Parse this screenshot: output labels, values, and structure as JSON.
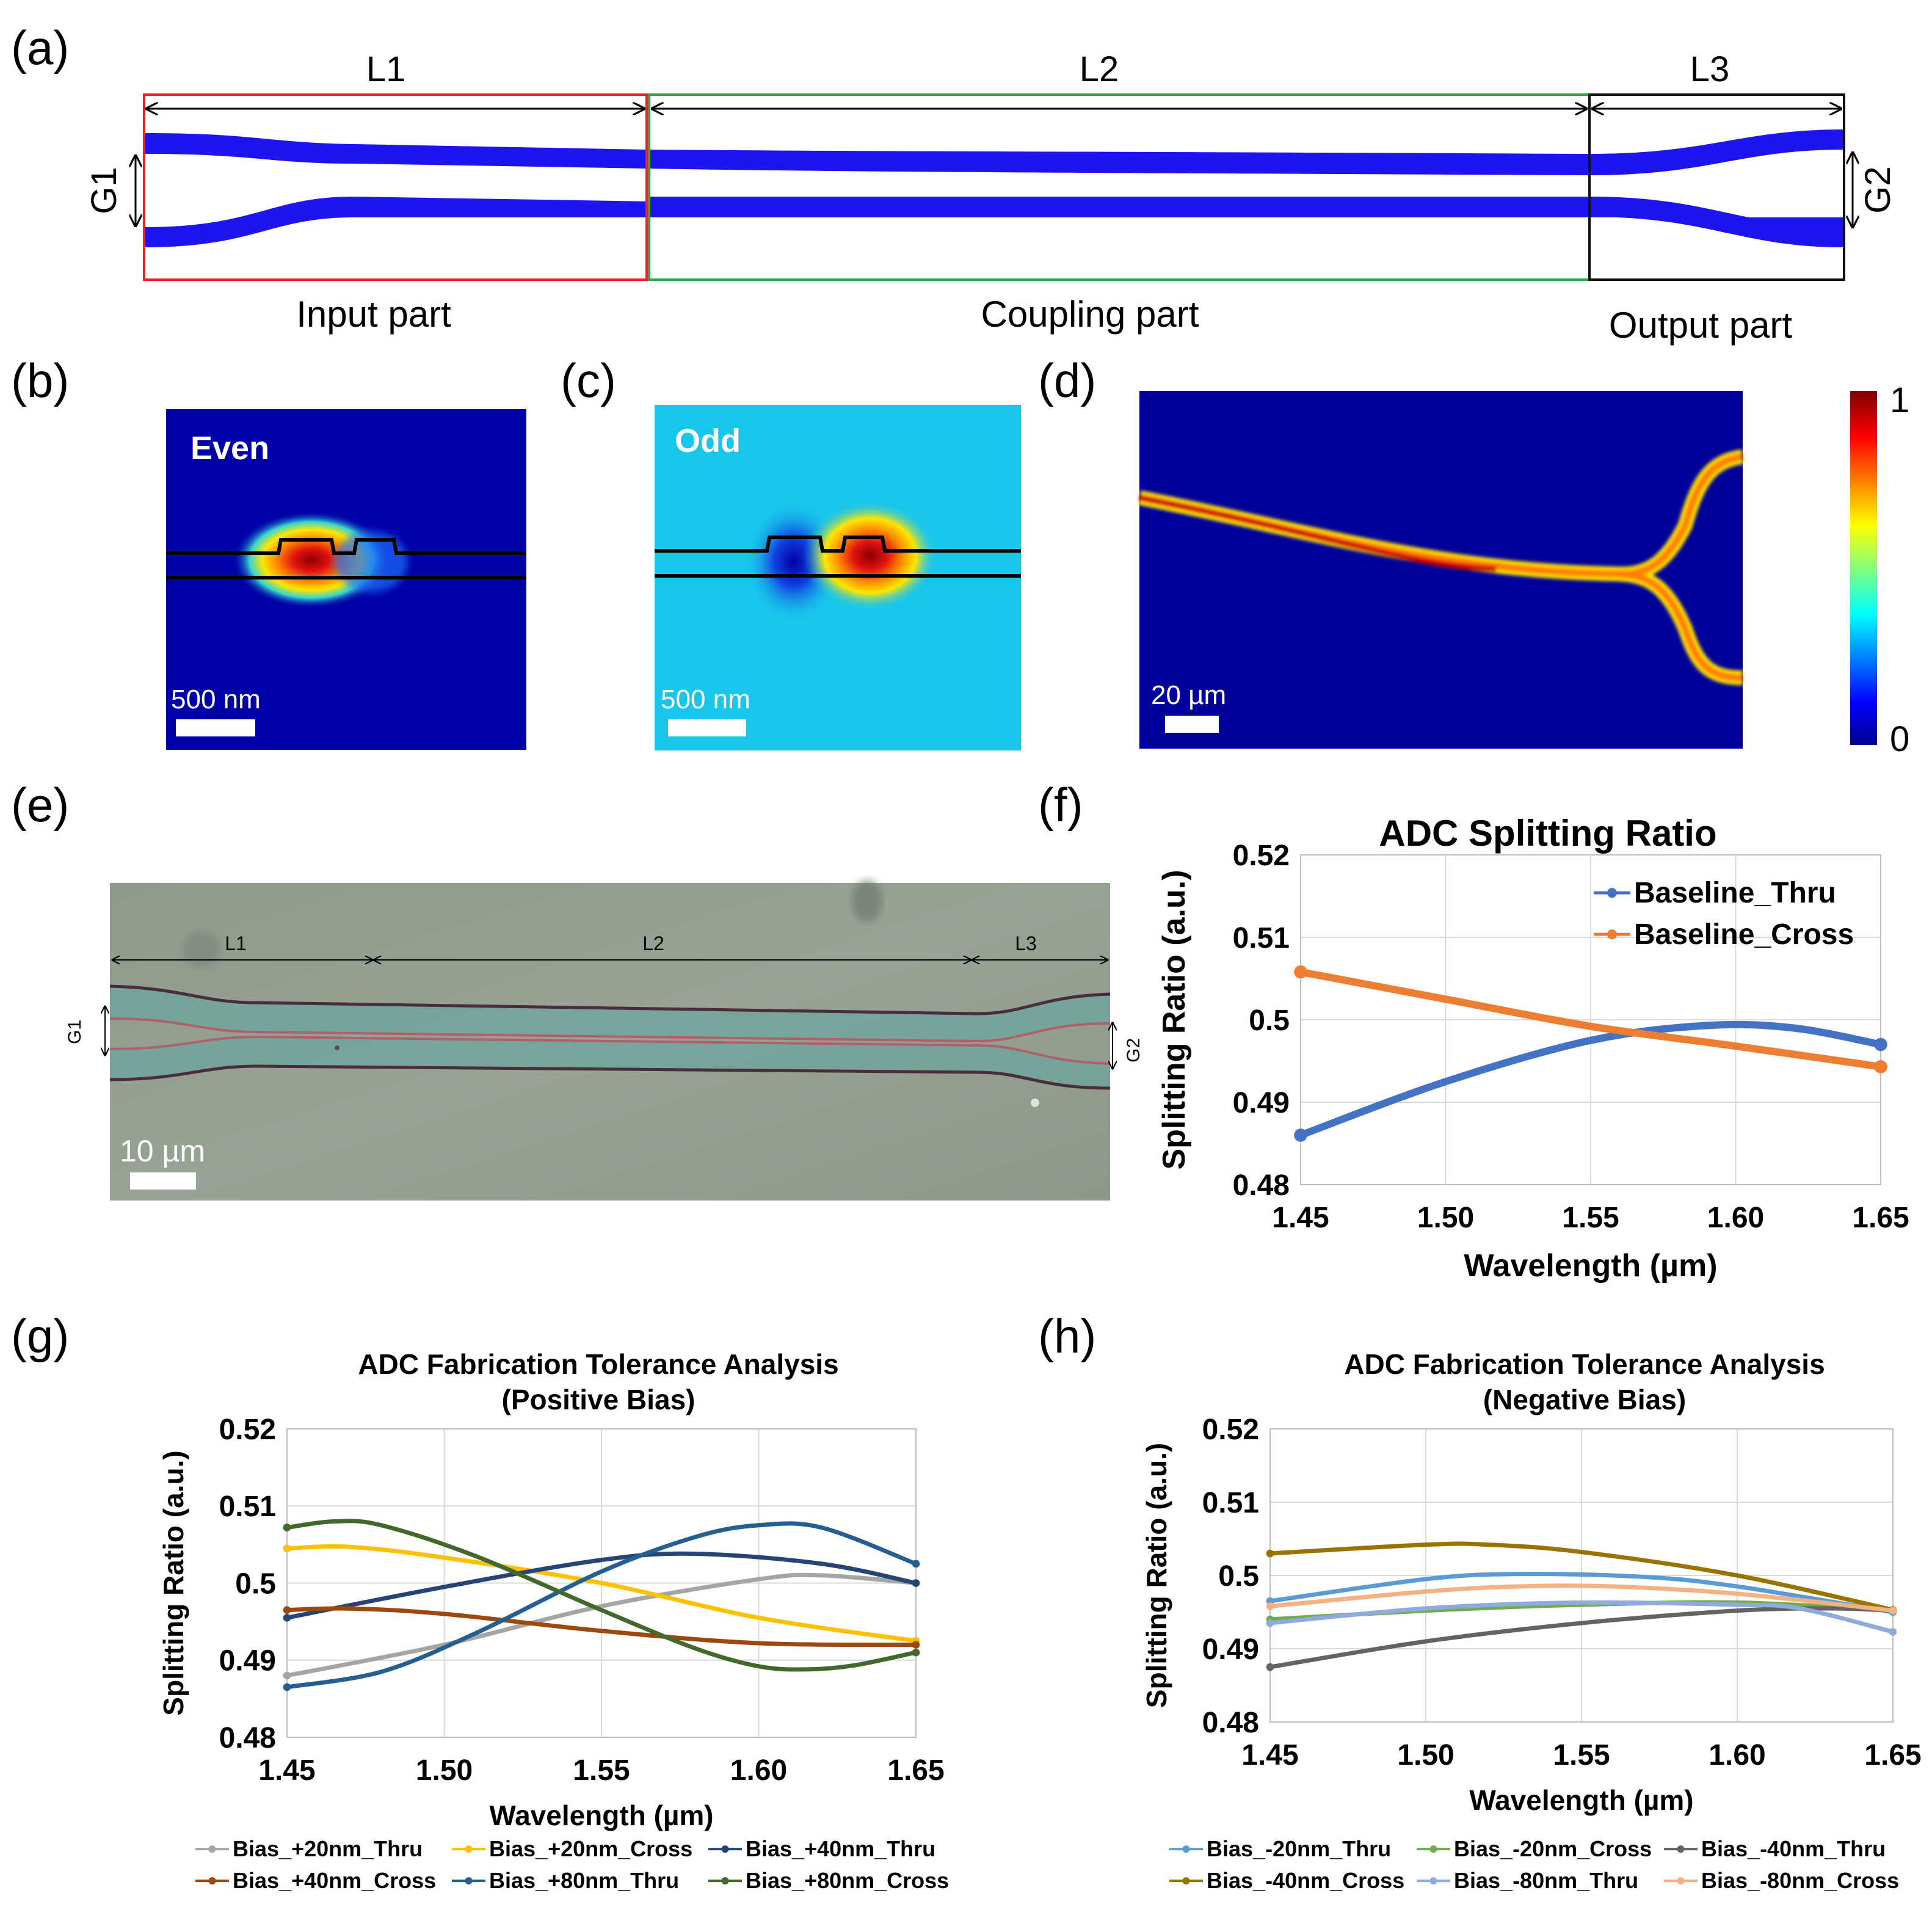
{
  "panel_labels": [
    "(a)",
    "(b)",
    "(c)",
    "(d)",
    "(e)",
    "(f)",
    "(g)",
    "(h)"
  ],
  "schematic": {
    "dims": [
      "L1",
      "L2",
      "L3"
    ],
    "gaps": [
      "G1",
      "G2"
    ],
    "parts": [
      "Input part",
      "Coupling part",
      "Output part"
    ],
    "colors": {
      "waveguide": "#1e14f0",
      "input_box": "#e8262a",
      "coupling_box": "#2aa844",
      "output_box": "#111111"
    }
  },
  "mode_b": {
    "label": "Even",
    "scale": "500 nm"
  },
  "mode_c": {
    "label": "Odd",
    "scale": "500 nm"
  },
  "field_d": {
    "scale": "20 µm",
    "colorbar_max": "1",
    "colorbar_min": "0"
  },
  "micrograph": {
    "dims": [
      "L1",
      "L2",
      "L3"
    ],
    "gaps": [
      "G1",
      "G2"
    ],
    "scale": "10 µm"
  },
  "chart_data": [
    {
      "id": "f",
      "type": "line",
      "title": "ADC Splitting Ratio",
      "xlabel": "Wavelength (µm)",
      "ylabel": "Splitting Ratio (a.u.)",
      "xlim": [
        1.45,
        1.65
      ],
      "ylim": [
        0.48,
        0.52
      ],
      "xticks": [
        "1.45",
        "1.50",
        "1.55",
        "1.60",
        "1.65"
      ],
      "yticks": [
        "0.48",
        "0.49",
        "0.5",
        "0.51",
        "0.52"
      ],
      "legend_position": "top-right",
      "series": [
        {
          "name": "Baseline_Thru",
          "color": "#4472c4",
          "x": [
            1.45,
            1.5,
            1.55,
            1.59,
            1.62,
            1.65
          ],
          "y": [
            0.486,
            0.4925,
            0.4975,
            0.4993,
            0.499,
            0.497
          ]
        },
        {
          "name": "Baseline_Cross",
          "color": "#ed7d31",
          "x": [
            1.45,
            1.5,
            1.55,
            1.6,
            1.65
          ],
          "y": [
            0.5058,
            0.5025,
            0.4992,
            0.4968,
            0.4943
          ]
        }
      ]
    },
    {
      "id": "g",
      "type": "line",
      "title": "ADC Fabrication Tolerance Analysis",
      "subtitle": "(Positive Bias)",
      "xlabel": "Wavelength (µm)",
      "ylabel": "Splitting Ratio (a.u.)",
      "xlim": [
        1.45,
        1.65
      ],
      "ylim": [
        0.48,
        0.52
      ],
      "xticks": [
        "1.45",
        "1.50",
        "1.55",
        "1.60",
        "1.65"
      ],
      "yticks": [
        "0.48",
        "0.49",
        "0.5",
        "0.51",
        "0.52"
      ],
      "legend_position": "bottom",
      "series": [
        {
          "name": "Bias_+20nm_Thru",
          "color": "#a5a5a5",
          "x": [
            1.45,
            1.5,
            1.55,
            1.6,
            1.62,
            1.65
          ],
          "y": [
            0.488,
            0.492,
            0.497,
            0.5005,
            0.501,
            0.5
          ]
        },
        {
          "name": "Bias_+20nm_Cross",
          "color": "#ffc000",
          "x": [
            1.45,
            1.47,
            1.5,
            1.55,
            1.6,
            1.65
          ],
          "y": [
            0.5045,
            0.5047,
            0.5033,
            0.5,
            0.4955,
            0.4925
          ]
        },
        {
          "name": "Bias_+40nm_Thru",
          "color": "#264478",
          "x": [
            1.45,
            1.5,
            1.55,
            1.58,
            1.62,
            1.65
          ],
          "y": [
            0.4955,
            0.4995,
            0.503,
            0.5038,
            0.5025,
            0.5
          ]
        },
        {
          "name": "Bias_+40nm_Cross",
          "color": "#9e480e",
          "x": [
            1.45,
            1.47,
            1.5,
            1.55,
            1.6,
            1.65
          ],
          "y": [
            0.4965,
            0.4967,
            0.496,
            0.4938,
            0.4922,
            0.492
          ]
        },
        {
          "name": "Bias_+80nm_Thru",
          "color": "#255e91",
          "x": [
            1.45,
            1.48,
            1.51,
            1.55,
            1.58,
            1.6,
            1.62,
            1.65
          ],
          "y": [
            0.4865,
            0.4885,
            0.4935,
            0.5015,
            0.506,
            0.5075,
            0.5072,
            0.5025
          ]
        },
        {
          "name": "Bias_+80nm_Cross",
          "color": "#43682b",
          "x": [
            1.45,
            1.465,
            1.48,
            1.51,
            1.55,
            1.58,
            1.6,
            1.615,
            1.63,
            1.65
          ],
          "y": [
            0.5072,
            0.508,
            0.5075,
            0.5035,
            0.4965,
            0.4915,
            0.4892,
            0.4888,
            0.4893,
            0.491
          ]
        }
      ]
    },
    {
      "id": "h",
      "type": "line",
      "title": "ADC Fabrication Tolerance Analysis",
      "subtitle": "(Negative Bias)",
      "xlabel": "Wavelength (µm)",
      "ylabel": "Splitting Ratio (a.u.)",
      "xlim": [
        1.45,
        1.65
      ],
      "ylim": [
        0.48,
        0.52
      ],
      "xticks": [
        "1.45",
        "1.50",
        "1.55",
        "1.60",
        "1.65"
      ],
      "yticks": [
        "0.48",
        "0.49",
        "0.5",
        "0.51",
        "0.52"
      ],
      "legend_position": "bottom",
      "series": [
        {
          "name": "Bias_-20nm_Thru",
          "color": "#5b9bd5",
          "x": [
            1.45,
            1.5,
            1.53,
            1.57,
            1.6,
            1.65
          ],
          "y": [
            0.4965,
            0.4995,
            0.5002,
            0.4998,
            0.4985,
            0.495
          ]
        },
        {
          "name": "Bias_-20nm_Cross",
          "color": "#70ad47",
          "x": [
            1.45,
            1.5,
            1.55,
            1.6,
            1.65
          ],
          "y": [
            0.494,
            0.4952,
            0.496,
            0.4963,
            0.4952
          ]
        },
        {
          "name": "Bias_-40nm_Thru",
          "color": "#636363",
          "x": [
            1.45,
            1.5,
            1.55,
            1.6,
            1.63,
            1.65
          ],
          "y": [
            0.4875,
            0.491,
            0.4935,
            0.4952,
            0.4955,
            0.4952
          ]
        },
        {
          "name": "Bias_-40nm_Cross",
          "color": "#997300",
          "x": [
            1.45,
            1.5,
            1.52,
            1.55,
            1.6,
            1.65
          ],
          "y": [
            0.503,
            0.5042,
            0.5042,
            0.5032,
            0.5,
            0.4953
          ]
        },
        {
          "name": "Bias_-80nm_Thru",
          "color": "#8faadc",
          "x": [
            1.45,
            1.5,
            1.55,
            1.6,
            1.62,
            1.65
          ],
          "y": [
            0.4935,
            0.4955,
            0.4963,
            0.496,
            0.4955,
            0.4923
          ]
        },
        {
          "name": "Bias_-80nm_Cross",
          "color": "#f4b183",
          "x": [
            1.45,
            1.5,
            1.53,
            1.56,
            1.6,
            1.65
          ],
          "y": [
            0.4958,
            0.4978,
            0.4985,
            0.4985,
            0.4975,
            0.4952
          ]
        }
      ]
    }
  ]
}
